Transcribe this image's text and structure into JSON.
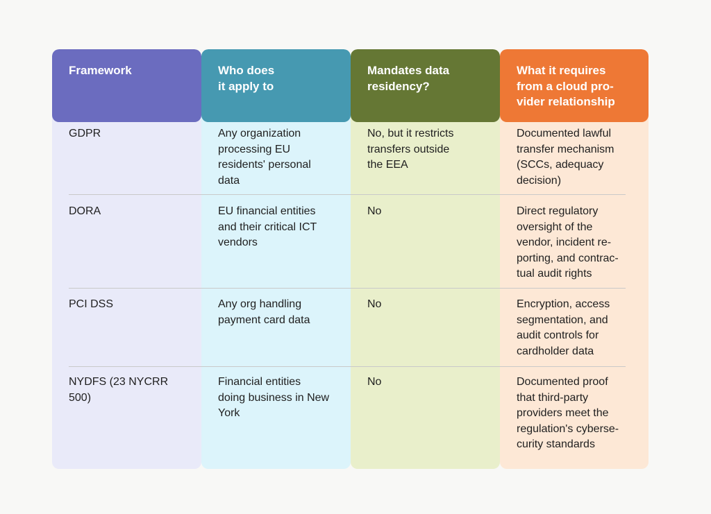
{
  "table": {
    "headers": [
      "Framework",
      "Who does\nit apply to",
      "Mandates data\nresidency?",
      "What it requires\nfrom a cloud pro-\nvider relationship"
    ],
    "rows": [
      [
        "GDPR",
        "Any organization\nprocessing EU\nresidents' personal\ndata",
        "No, but it restricts\ntransfers outside\nthe EEA",
        "Documented lawful\ntransfer mechanism\n(SCCs, adequacy\ndecision)"
      ],
      [
        "DORA",
        "EU financial entities\nand their critical ICT\nvendors",
        "No",
        "Direct regulatory\noversight of the\nvendor, incident re-\nporting, and contrac-\ntual audit rights"
      ],
      [
        "PCI DSS",
        "Any org handling\npayment card data",
        "No",
        "Encryption, access\nsegmentation, and\naudit controls for\ncardholder data"
      ],
      [
        "NYDFS (23 NYCRR\n500)",
        "Financial entities\ndoing business in New\nYork",
        "No",
        "Documented proof\nthat third-party\nproviders meet the\nregulation's cyberse-\ncurity standards"
      ]
    ]
  },
  "colors": {
    "framework_header": "#6b6cbf",
    "who_header": "#4699b1",
    "residency_header": "#657734",
    "requires_header": "#ee7835"
  }
}
